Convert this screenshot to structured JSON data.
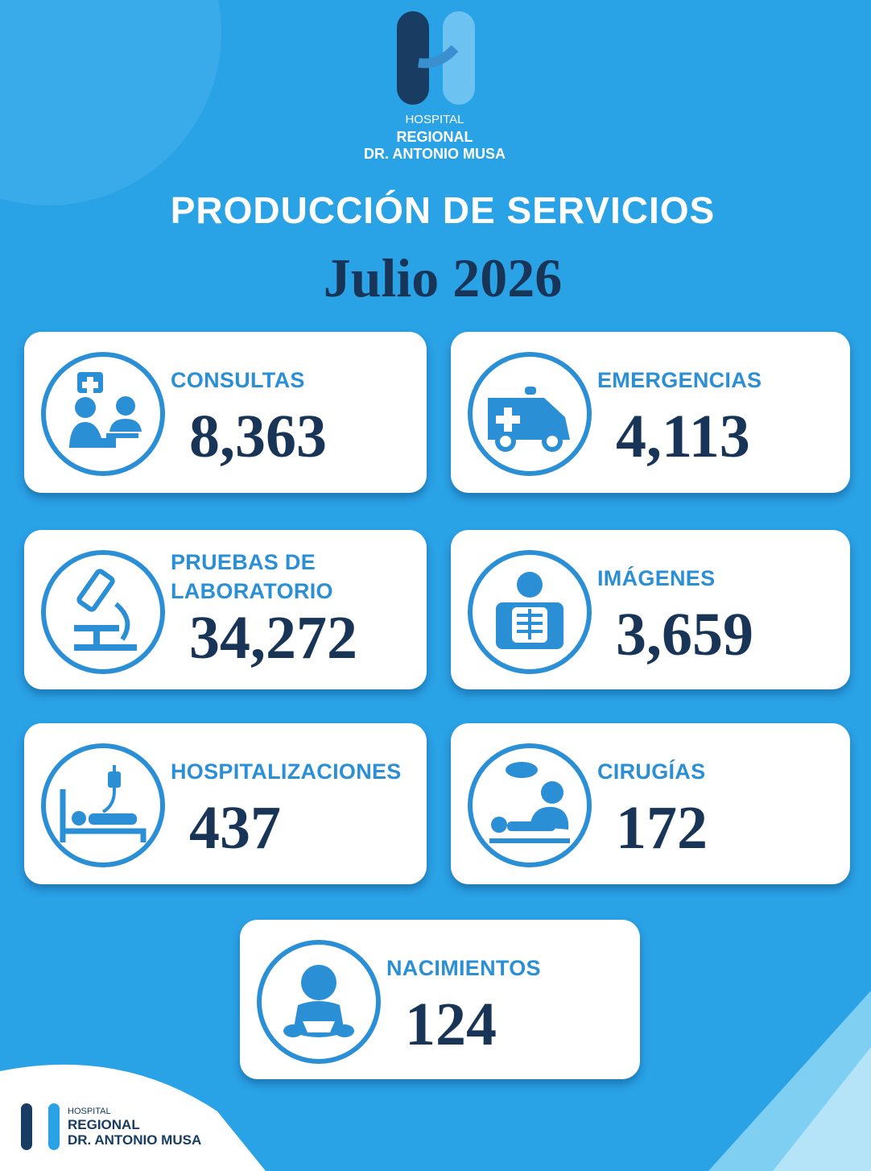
{
  "header": {
    "logo": {
      "line1": "HOSPITAL",
      "line2": "REGIONAL",
      "line3": "DR. ANTONIO MUSA"
    },
    "title": "PRODUCCIÓN DE SERVICIOS",
    "period": "Julio 2026"
  },
  "cards": [
    {
      "label": [
        "CONSULTAS"
      ],
      "value": "8,363"
    },
    {
      "label": [
        "EMERGENCIAS"
      ],
      "value": "4,113"
    },
    {
      "label": [
        "PRUEBAS DE",
        "LABORATORIO"
      ],
      "value": "34,272"
    },
    {
      "label": [
        "IMÁGENES"
      ],
      "value": "3,659"
    },
    {
      "label": [
        "HOSPITALIZACIONES"
      ],
      "value": "437"
    },
    {
      "label": [
        "CIRUGÍAS"
      ],
      "value": "172"
    },
    {
      "label": [
        "NACIMIENTOS"
      ],
      "value": "124"
    }
  ],
  "footer": {
    "logo": {
      "line1": "HOSPITAL",
      "line2": "REGIONAL",
      "line3": "DR. ANTONIO MUSA"
    }
  }
}
